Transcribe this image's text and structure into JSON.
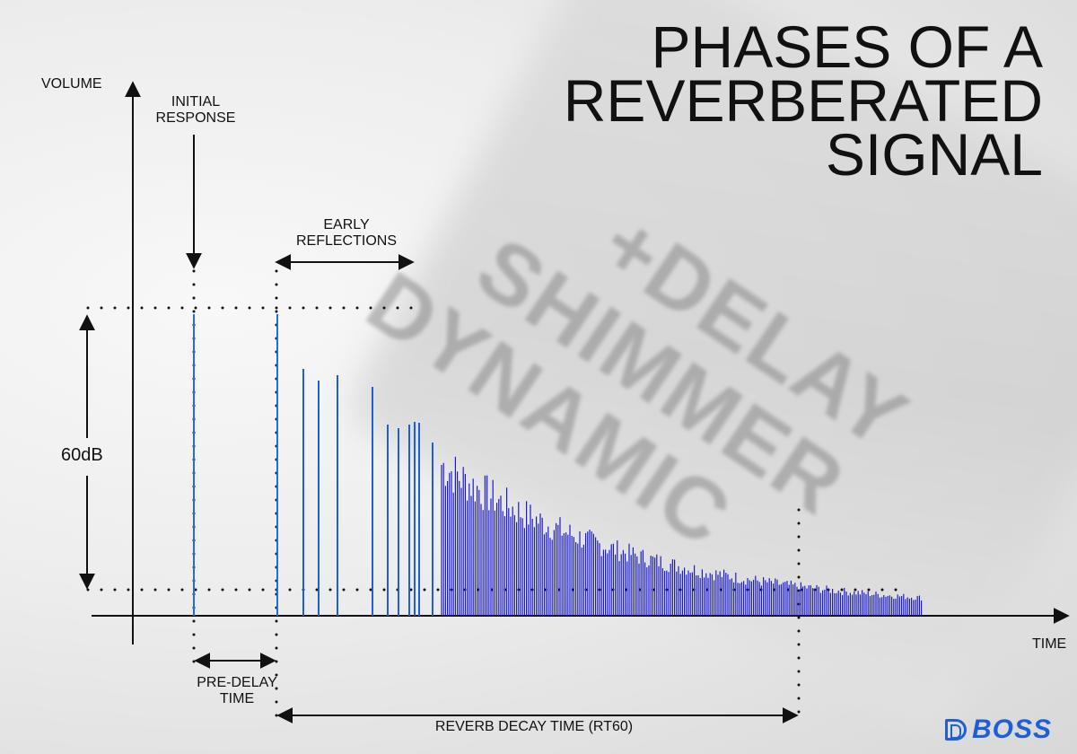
{
  "title": {
    "line1": "PHASES OF A",
    "line2": "REVERBERATED",
    "line3": "SIGNAL"
  },
  "background_words": [
    "+DELAY",
    "SHIMMER",
    "DYNAMIC"
  ],
  "labels": {
    "y_axis": "VOLUME",
    "x_axis": "TIME",
    "initial_response_1": "INITIAL",
    "initial_response_2": "RESPONSE",
    "early_reflections_1": "EARLY",
    "early_reflections_2": "REFLECTIONS",
    "level_range": "60dB",
    "pre_delay_1": "PRE-DELAY",
    "pre_delay_2": "TIME",
    "rt60": "REVERB DECAY TIME (RT60)"
  },
  "brand": {
    "name": "BOSS",
    "icon": "boss-logo-icon"
  },
  "colors": {
    "impulse": "#1f6fe0",
    "reflections": "#1f5ed8",
    "tail": "#1a1ad0",
    "axis": "#111111",
    "title": "#111111"
  }
}
